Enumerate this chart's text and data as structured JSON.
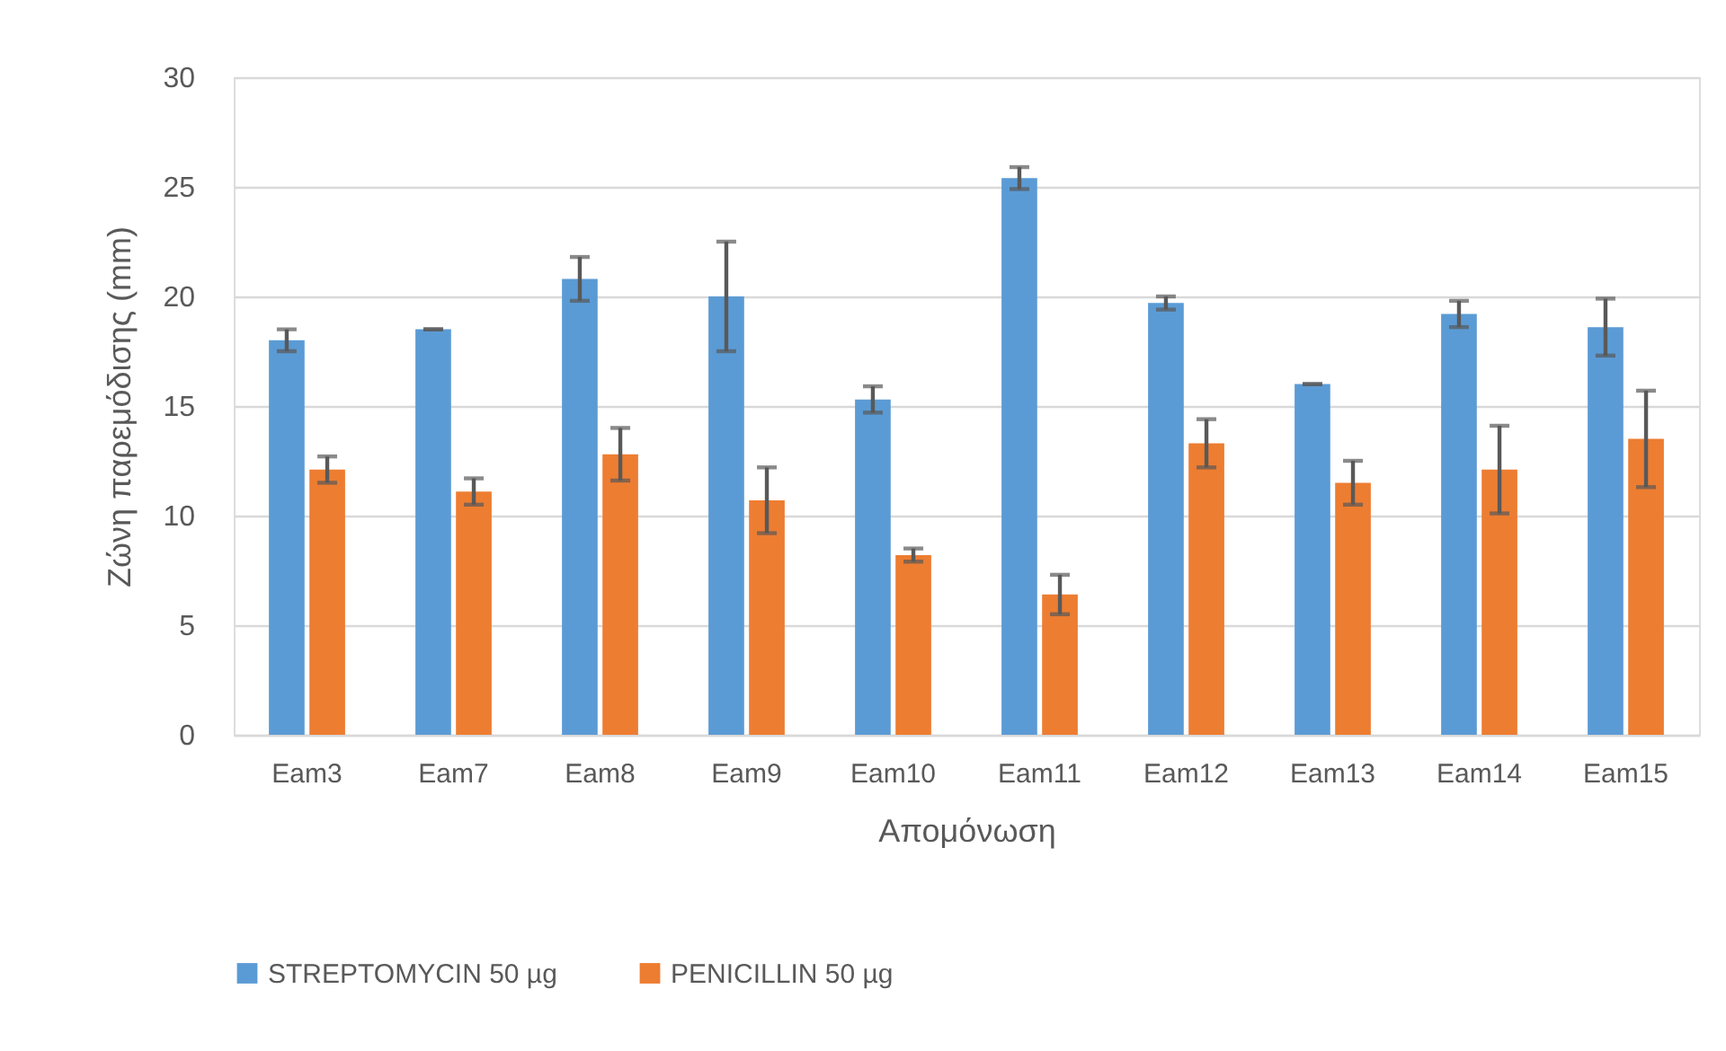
{
  "chart_data": {
    "type": "bar",
    "xlabel": "Απομόνωση",
    "ylabel": "Ζώνη παρεμόδισης (mm)",
    "categories": [
      "Eam3",
      "Eam7",
      "Eam8",
      "Eam9",
      "Eam10",
      "Eam11",
      "Eam12",
      "Eam13",
      "Eam14",
      "Eam15"
    ],
    "series": [
      {
        "name": "STREPTOMYCIN 50 µg",
        "color": "#5b9bd5",
        "values": [
          18.0,
          18.5,
          20.8,
          20.0,
          15.3,
          25.4,
          19.7,
          16.0,
          19.2,
          18.6
        ],
        "errors": [
          0.5,
          0,
          1.0,
          2.5,
          0.6,
          0.5,
          0.3,
          0,
          0.6,
          1.3
        ]
      },
      {
        "name": "PENICILLIN 50 µg",
        "color": "#ed7d31",
        "values": [
          12.1,
          11.1,
          12.8,
          10.7,
          8.2,
          6.4,
          13.3,
          11.5,
          12.1,
          13.5
        ],
        "errors": [
          0.6,
          0.6,
          1.2,
          1.5,
          0.3,
          0.9,
          1.1,
          1.0,
          2.0,
          2.2
        ]
      }
    ],
    "ylim": [
      0,
      30
    ],
    "yticks": [
      0,
      5,
      10,
      15,
      20,
      25,
      30
    ],
    "grid": "y",
    "legend": "bottom"
  }
}
